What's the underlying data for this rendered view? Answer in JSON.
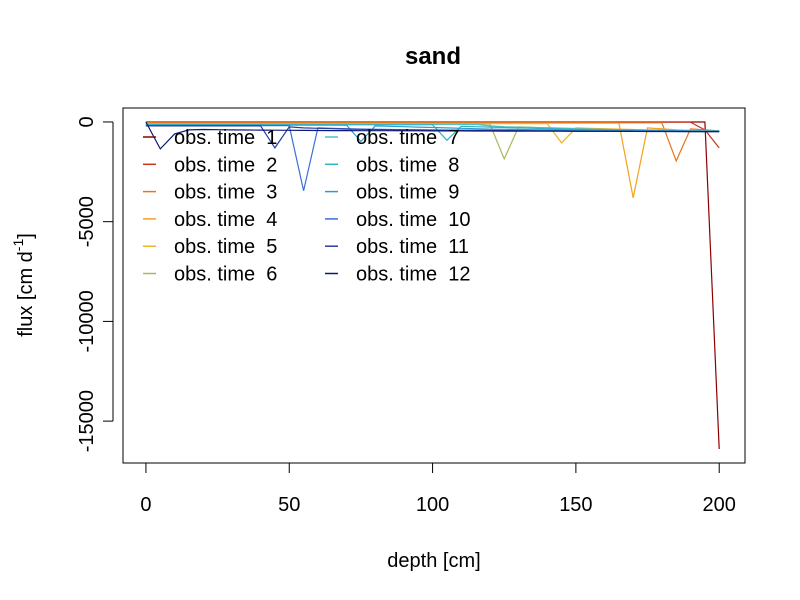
{
  "chart_data": {
    "type": "line",
    "title": "sand",
    "xlabel": "depth [cm]",
    "ylabel": {
      "base": "flux [cm d",
      "sup": "-1",
      "close": "]"
    },
    "xlim": [
      -8,
      209
    ],
    "ylim": [
      -17100,
      700
    ],
    "xticks": [
      0,
      50,
      100,
      150,
      200
    ],
    "yticks": [
      0,
      -5000,
      -10000,
      -15000
    ],
    "x": [
      0,
      5,
      10,
      15,
      20,
      25,
      30,
      35,
      40,
      45,
      50,
      55,
      60,
      65,
      70,
      75,
      80,
      85,
      90,
      95,
      100,
      105,
      110,
      115,
      120,
      125,
      130,
      135,
      140,
      145,
      150,
      155,
      160,
      165,
      170,
      175,
      180,
      185,
      190,
      195,
      200
    ],
    "legend_position": "top-left",
    "legend_columns": 2,
    "series": [
      {
        "name": "obs. time  1",
        "color": "#8b0000",
        "values": [
          0,
          0,
          0,
          0,
          0,
          0,
          0,
          0,
          0,
          0,
          0,
          0,
          0,
          0,
          0,
          0,
          0,
          0,
          0,
          0,
          0,
          0,
          0,
          0,
          0,
          0,
          0,
          0,
          0,
          0,
          0,
          0,
          0,
          0,
          0,
          0,
          0,
          0,
          0,
          0,
          -16400
        ]
      },
      {
        "name": "obs. time  2",
        "color": "#c8341d",
        "values": [
          -10,
          -10,
          -10,
          -10,
          -10,
          -10,
          -10,
          -10,
          -10,
          -10,
          -10,
          -10,
          -10,
          -10,
          -10,
          -10,
          -10,
          -10,
          -10,
          -10,
          -10,
          -10,
          -10,
          -10,
          -10,
          -10,
          -10,
          -10,
          -10,
          -10,
          -10,
          -10,
          -10,
          -10,
          -10,
          -10,
          -10,
          -10,
          -10,
          -400,
          -1300
        ]
      },
      {
        "name": "obs. time  3",
        "color": "#e8741b",
        "values": [
          -40,
          -40,
          -40,
          -40,
          -40,
          -40,
          -40,
          -40,
          -40,
          -40,
          -40,
          -40,
          -40,
          -40,
          -40,
          -40,
          -40,
          -40,
          -40,
          -40,
          -40,
          -40,
          -40,
          -40,
          -40,
          -40,
          -40,
          -40,
          -40,
          -40,
          -40,
          -40,
          -40,
          -40,
          -40,
          -40,
          -40,
          -1950,
          -350,
          -400,
          -450
        ]
      },
      {
        "name": "obs. time  4",
        "color": "#f5a11a",
        "values": [
          -60,
          -60,
          -60,
          -60,
          -60,
          -60,
          -60,
          -60,
          -60,
          -60,
          -60,
          -60,
          -60,
          -60,
          -60,
          -60,
          -60,
          -60,
          -60,
          -60,
          -60,
          -60,
          -60,
          -60,
          -60,
          -60,
          -60,
          -60,
          -60,
          -60,
          -60,
          -60,
          -60,
          -60,
          -3800,
          -300,
          -350,
          -400,
          -420,
          -440,
          -450
        ]
      },
      {
        "name": "obs. time  5",
        "color": "#f0b323",
        "values": [
          -80,
          -80,
          -80,
          -80,
          -80,
          -80,
          -80,
          -80,
          -80,
          -80,
          -80,
          -80,
          -80,
          -80,
          -80,
          -80,
          -80,
          -80,
          -80,
          -80,
          -80,
          -80,
          -80,
          -80,
          -80,
          -80,
          -80,
          -80,
          -80,
          -1050,
          -300,
          -320,
          -340,
          -360,
          -380,
          -400,
          -410,
          -420,
          -430,
          -440,
          -450
        ]
      },
      {
        "name": "obs. time  6",
        "color": "#a8b85a",
        "values": [
          -100,
          -100,
          -100,
          -100,
          -100,
          -100,
          -100,
          -100,
          -100,
          -100,
          -100,
          -100,
          -100,
          -100,
          -100,
          -100,
          -100,
          -100,
          -100,
          -100,
          -100,
          -100,
          -100,
          -100,
          -100,
          -1850,
          -250,
          -270,
          -290,
          -310,
          -330,
          -350,
          -370,
          -390,
          -400,
          -410,
          -420,
          -430,
          -440,
          -445,
          -450
        ]
      },
      {
        "name": "obs. time  7",
        "color": "#4cc1c8",
        "values": [
          -120,
          -120,
          -120,
          -120,
          -120,
          -120,
          -120,
          -120,
          -120,
          -120,
          -120,
          -120,
          -120,
          -120,
          -120,
          -120,
          -120,
          -120,
          -120,
          -120,
          -120,
          -120,
          -120,
          -120,
          -200,
          -240,
          -260,
          -280,
          -300,
          -320,
          -340,
          -360,
          -380,
          -390,
          -400,
          -410,
          -420,
          -430,
          -440,
          -445,
          -450
        ]
      },
      {
        "name": "obs. time  8",
        "color": "#2fb3c4",
        "values": [
          -140,
          -140,
          -140,
          -140,
          -140,
          -140,
          -140,
          -140,
          -140,
          -140,
          -140,
          -140,
          -140,
          -140,
          -140,
          -140,
          -140,
          -140,
          -140,
          -140,
          -140,
          -920,
          -220,
          -240,
          -260,
          -280,
          -300,
          -320,
          -340,
          -360,
          -380,
          -390,
          -400,
          -410,
          -420,
          -430,
          -440,
          -445,
          -450,
          -455,
          -460
        ]
      },
      {
        "name": "obs. time  9",
        "color": "#2b9bd3",
        "values": [
          -160,
          -160,
          -160,
          -160,
          -160,
          -160,
          -160,
          -160,
          -160,
          -160,
          -160,
          -160,
          -160,
          -160,
          -160,
          -980,
          -200,
          -220,
          -240,
          -260,
          -280,
          -300,
          -320,
          -340,
          -360,
          -370,
          -380,
          -390,
          -400,
          -410,
          -420,
          -430,
          -435,
          -440,
          -445,
          -450,
          -455,
          -460,
          -465,
          -470,
          -470
        ]
      },
      {
        "name": "obs. time  10",
        "color": "#3a6fd6",
        "values": [
          -180,
          -180,
          -180,
          -180,
          -180,
          -180,
          -180,
          -180,
          -180,
          -180,
          -180,
          -3450,
          -300,
          -320,
          -340,
          -360,
          -370,
          -380,
          -390,
          -400,
          -405,
          -410,
          -415,
          -420,
          -425,
          -430,
          -435,
          -440,
          -445,
          -450,
          -455,
          -460,
          -462,
          -464,
          -466,
          -468,
          -470,
          -472,
          -474,
          -476,
          -478
        ]
      },
      {
        "name": "obs. time  11",
        "color": "#2a3d9e",
        "values": [
          -200,
          -200,
          -200,
          -200,
          -200,
          -200,
          -200,
          -200,
          -200,
          -1300,
          -250,
          -300,
          -320,
          -340,
          -360,
          -370,
          -380,
          -390,
          -400,
          -405,
          -410,
          -415,
          -420,
          -425,
          -430,
          -435,
          -440,
          -445,
          -450,
          -455,
          -458,
          -461,
          -464,
          -467,
          -470,
          -472,
          -474,
          -476,
          -478,
          -479,
          -480
        ]
      },
      {
        "name": "obs. time  12",
        "color": "#0b1a78",
        "values": [
          0,
          -1350,
          -600,
          -400,
          -380,
          -390,
          -400,
          -405,
          -410,
          -415,
          -420,
          -425,
          -430,
          -432,
          -434,
          -436,
          -438,
          -440,
          -442,
          -444,
          -446,
          -448,
          -450,
          -452,
          -454,
          -456,
          -458,
          -460,
          -462,
          -464,
          -466,
          -468,
          -470,
          -472,
          -474,
          -476,
          -478,
          -480,
          -482,
          -484,
          -486
        ]
      }
    ]
  }
}
